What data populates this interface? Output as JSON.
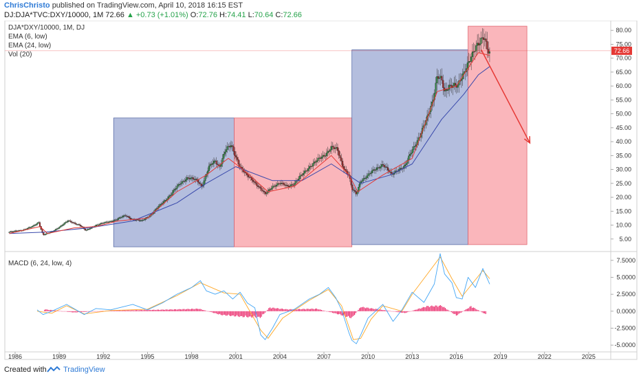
{
  "header": {
    "author": "ChrisChristo",
    "published_text": "published on TradingView.com, April 10, 2018 16:15 EST",
    "symbol": "DJ:DJA*TVC:DXY/10000, 1M",
    "last": "72.66",
    "change": "▲ +0.73 (+1.01%)",
    "o_label": "O:",
    "o_value": "72.76",
    "h_label": "H:",
    "h_value": "74.41",
    "l_label": "L:",
    "l_value": "70.64",
    "c_label": "C:",
    "c_value": "72.66"
  },
  "legend": {
    "symbol": "DJA*DXY/10000, 1M, DJ",
    "ema_fast": "EMA (6, low)",
    "ema_slow": "EMA (24, low)",
    "volume": "Vol (20)",
    "macd": "MACD (6, 24, low, 4)"
  },
  "price_badge": "72.66",
  "footer": {
    "created": "Created with",
    "brand": "TradingView"
  },
  "colors": {
    "candle_up": "#2c8a3e",
    "candle_down": "#9b2828",
    "ema_fast": "#e53935",
    "ema_slow": "#3949ab",
    "macd_line": "#42a5f5",
    "signal_line": "#ffa726",
    "histogram": "#e91e63",
    "box_blue": "#8c9bcc",
    "box_red": "#f78f96",
    "arrow": "#e53935",
    "badge": "#e53935"
  },
  "chart_data": [
    {
      "type": "candlestick",
      "title": "DJA*DXY/10000, 1M, DJ",
      "x_ticks": [
        "1986",
        "1989",
        "1992",
        "1995",
        "1998",
        "2001",
        "2004",
        "2007",
        "2010",
        "2013",
        "2016",
        "2019",
        "2022",
        "2025"
      ],
      "y_ticks": [
        "5.00",
        "10.00",
        "15.00",
        "20.00",
        "25.00",
        "30.00",
        "35.00",
        "40.00",
        "45.00",
        "50.00",
        "55.00",
        "60.00",
        "65.00",
        "70.00",
        "75.00",
        "80.00"
      ],
      "xlim": [
        1985.3,
        2026.5
      ],
      "ylim": [
        0.5,
        83.5
      ],
      "last_price": 72.66,
      "series": [
        {
          "name": "DJA*DXY/10000",
          "type": "line",
          "x": [
            1985.6,
            1986.5,
            1987.2,
            1987.6,
            1987.9,
            1988.5,
            1989.6,
            1990.4,
            1990.8,
            1991.5,
            1992.2,
            1992.9,
            1993.5,
            1994.0,
            1994.6,
            1995.3,
            1996.0,
            1996.6,
            1997.2,
            1997.7,
            1998.4,
            1998.7,
            1999.2,
            1999.6,
            1999.9,
            2000.3,
            2000.7,
            2000.9,
            2001.3,
            2001.7,
            2002.2,
            2002.7,
            2003.0,
            2003.5,
            2004.0,
            2004.5,
            2005.0,
            2005.5,
            2006.0,
            2006.5,
            2007.0,
            2007.5,
            2007.9,
            2008.3,
            2008.7,
            2008.9,
            2009.2,
            2009.5,
            2010.0,
            2010.5,
            2011.0,
            2011.6,
            2012.0,
            2012.5,
            2013.0,
            2013.5,
            2014.0,
            2014.4,
            2014.7,
            2015.0,
            2015.2,
            2015.5,
            2015.8,
            2016.1,
            2016.5,
            2016.9,
            2017.2,
            2017.6,
            2017.9,
            2018.1,
            2018.27
          ],
          "values": [
            7.5,
            8.2,
            9.5,
            11.0,
            6.5,
            7.5,
            11.5,
            10.0,
            8.0,
            10.0,
            11.0,
            12.0,
            13.5,
            12.0,
            11.5,
            14.0,
            18.0,
            21.0,
            25.0,
            27.0,
            26.0,
            24.0,
            31.0,
            33.0,
            31.0,
            37.0,
            38.5,
            36.0,
            31.0,
            28.0,
            26.0,
            23.0,
            21.0,
            24.0,
            25.0,
            24.0,
            25.0,
            28.0,
            31.0,
            33.0,
            35.0,
            38.0,
            37.0,
            31.0,
            28.0,
            23.0,
            21.0,
            26.0,
            28.0,
            30.0,
            32.0,
            28.0,
            30.0,
            31.0,
            37.0,
            42.0,
            48.0,
            55.0,
            64.0,
            62.0,
            57.0,
            60.0,
            61.0,
            60.0,
            64.0,
            70.0,
            73.0,
            75.0,
            78.0,
            74.0,
            72.66
          ]
        },
        {
          "name": "EMA (6, low)",
          "type": "line",
          "x": [
            1985.6,
            1987.7,
            1988.2,
            1990.0,
            1991.5,
            1993.0,
            1995.0,
            1997.0,
            1999.0,
            2000.5,
            2001.5,
            2003.2,
            2005.0,
            2007.5,
            2008.7,
            2009.3,
            2011.0,
            2013.0,
            2014.7,
            2016.0,
            2017.5,
            2018.27
          ],
          "values": [
            7.0,
            9.5,
            7.0,
            9.0,
            9.5,
            11.5,
            12.5,
            22.0,
            28.0,
            34.0,
            30.0,
            22.0,
            24.0,
            35.0,
            28.0,
            22.0,
            28.0,
            34.0,
            58.0,
            60.0,
            72.0,
            71.0
          ]
        },
        {
          "name": "EMA (24, low)",
          "type": "line",
          "x": [
            1985.6,
            1988.0,
            1991.0,
            1994.0,
            1997.0,
            1999.0,
            2001.0,
            2003.5,
            2005.5,
            2007.5,
            2009.5,
            2011.5,
            2013.0,
            2015.0,
            2016.5,
            2017.5,
            2018.27
          ],
          "values": [
            7.0,
            7.5,
            9.0,
            11.5,
            18.0,
            25.0,
            31.0,
            26.0,
            26.0,
            32.0,
            25.0,
            28.0,
            32.0,
            48.0,
            57.0,
            64.0,
            67.0
          ]
        }
      ],
      "boxes": [
        {
          "color": "blue",
          "x": [
            1992.7,
            2000.9
          ],
          "y": [
            2.2,
            48.5
          ]
        },
        {
          "color": "red",
          "x": [
            2000.9,
            2008.9
          ],
          "y": [
            2.2,
            48.5
          ]
        },
        {
          "color": "blue",
          "x": [
            2008.9,
            2016.8
          ],
          "y": [
            3.0,
            73.0
          ]
        },
        {
          "color": "red",
          "x": [
            2016.8,
            2020.8
          ],
          "y": [
            3.0,
            81.5
          ]
        }
      ],
      "arrow": {
        "x": [
          2017.7,
          2021.0
        ],
        "y": [
          73.0,
          39.5
        ]
      }
    },
    {
      "type": "line",
      "title": "MACD (6, 24, low, 4)",
      "y_ticks": [
        "-5.0000",
        "-2.5000",
        "0.0000",
        "2.5000",
        "5.0000",
        "7.5000"
      ],
      "ylim": [
        -6.0,
        8.8
      ],
      "series": [
        {
          "name": "MACD",
          "type": "line",
          "x": [
            1987.5,
            1987.9,
            1988.5,
            1989.5,
            1990.7,
            1991.5,
            1992.5,
            1994.0,
            1995.0,
            1996.0,
            1997.0,
            1998.0,
            1998.6,
            1999.0,
            1999.6,
            2000.2,
            2000.8,
            2001.3,
            2001.8,
            2002.3,
            2002.7,
            2003.0,
            2003.5,
            2004.0,
            2005.0,
            2006.0,
            2006.7,
            2007.3,
            2007.8,
            2008.2,
            2008.7,
            2008.9,
            2009.2,
            2009.5,
            2010.0,
            2011.0,
            2011.7,
            2012.3,
            2013.0,
            2013.8,
            2014.5,
            2014.9,
            2015.2,
            2015.7,
            2016.0,
            2016.4,
            2016.8,
            2017.3,
            2017.8,
            2018.27
          ],
          "values": [
            0.2,
            -0.5,
            0.0,
            1.0,
            -0.5,
            0.4,
            0.2,
            1.0,
            0.2,
            1.2,
            2.5,
            3.5,
            4.5,
            3.0,
            2.5,
            3.0,
            1.8,
            2.8,
            1.2,
            0.5,
            -3.5,
            -4.2,
            -2.5,
            -0.5,
            0.3,
            1.8,
            2.5,
            3.5,
            2.0,
            0.2,
            -3.2,
            -4.3,
            -4.8,
            -3.5,
            -1.0,
            1.0,
            -1.5,
            0.2,
            2.8,
            1.3,
            4.0,
            8.5,
            5.5,
            4.2,
            2.0,
            1.8,
            5.0,
            3.5,
            6.3,
            4.0
          ]
        },
        {
          "name": "Signal",
          "type": "line",
          "x": [
            1987.5,
            1988.5,
            1989.5,
            1990.7,
            1992.5,
            1995.0,
            1997.0,
            1998.6,
            2000.2,
            2001.3,
            2002.7,
            2003.2,
            2004.2,
            2006.0,
            2007.3,
            2008.2,
            2009.0,
            2009.5,
            2010.2,
            2011.0,
            2012.3,
            2013.0,
            2014.9,
            2015.7,
            2016.4,
            2017.8,
            2018.27
          ],
          "values": [
            0.0,
            -0.3,
            0.8,
            -0.4,
            0.1,
            0.3,
            2.3,
            4.2,
            2.7,
            2.5,
            -2.8,
            -4.0,
            -1.0,
            1.6,
            3.2,
            0.8,
            -4.2,
            -4.0,
            -1.2,
            0.8,
            0.0,
            2.5,
            8.0,
            4.8,
            2.2,
            6.0,
            4.8
          ]
        },
        {
          "name": "Histogram",
          "type": "bar",
          "x": [
            1988.0,
            1990.0,
            1992.5,
            1995.0,
            1997.0,
            1998.5,
            2000.0,
            2001.5,
            2002.7,
            2003.3,
            2004.5,
            2006.5,
            2008.0,
            2008.9,
            2009.5,
            2011.0,
            2012.5,
            2014.0,
            2015.0,
            2016.0,
            2017.0,
            2018.0
          ],
          "values": [
            0.3,
            -0.2,
            0.1,
            0.2,
            0.3,
            0.4,
            -0.6,
            -0.9,
            -1.0,
            0.6,
            0.3,
            0.4,
            -0.5,
            -1.1,
            0.7,
            0.2,
            -0.3,
            0.8,
            0.9,
            -0.7,
            0.8,
            -0.5
          ]
        }
      ]
    }
  ]
}
